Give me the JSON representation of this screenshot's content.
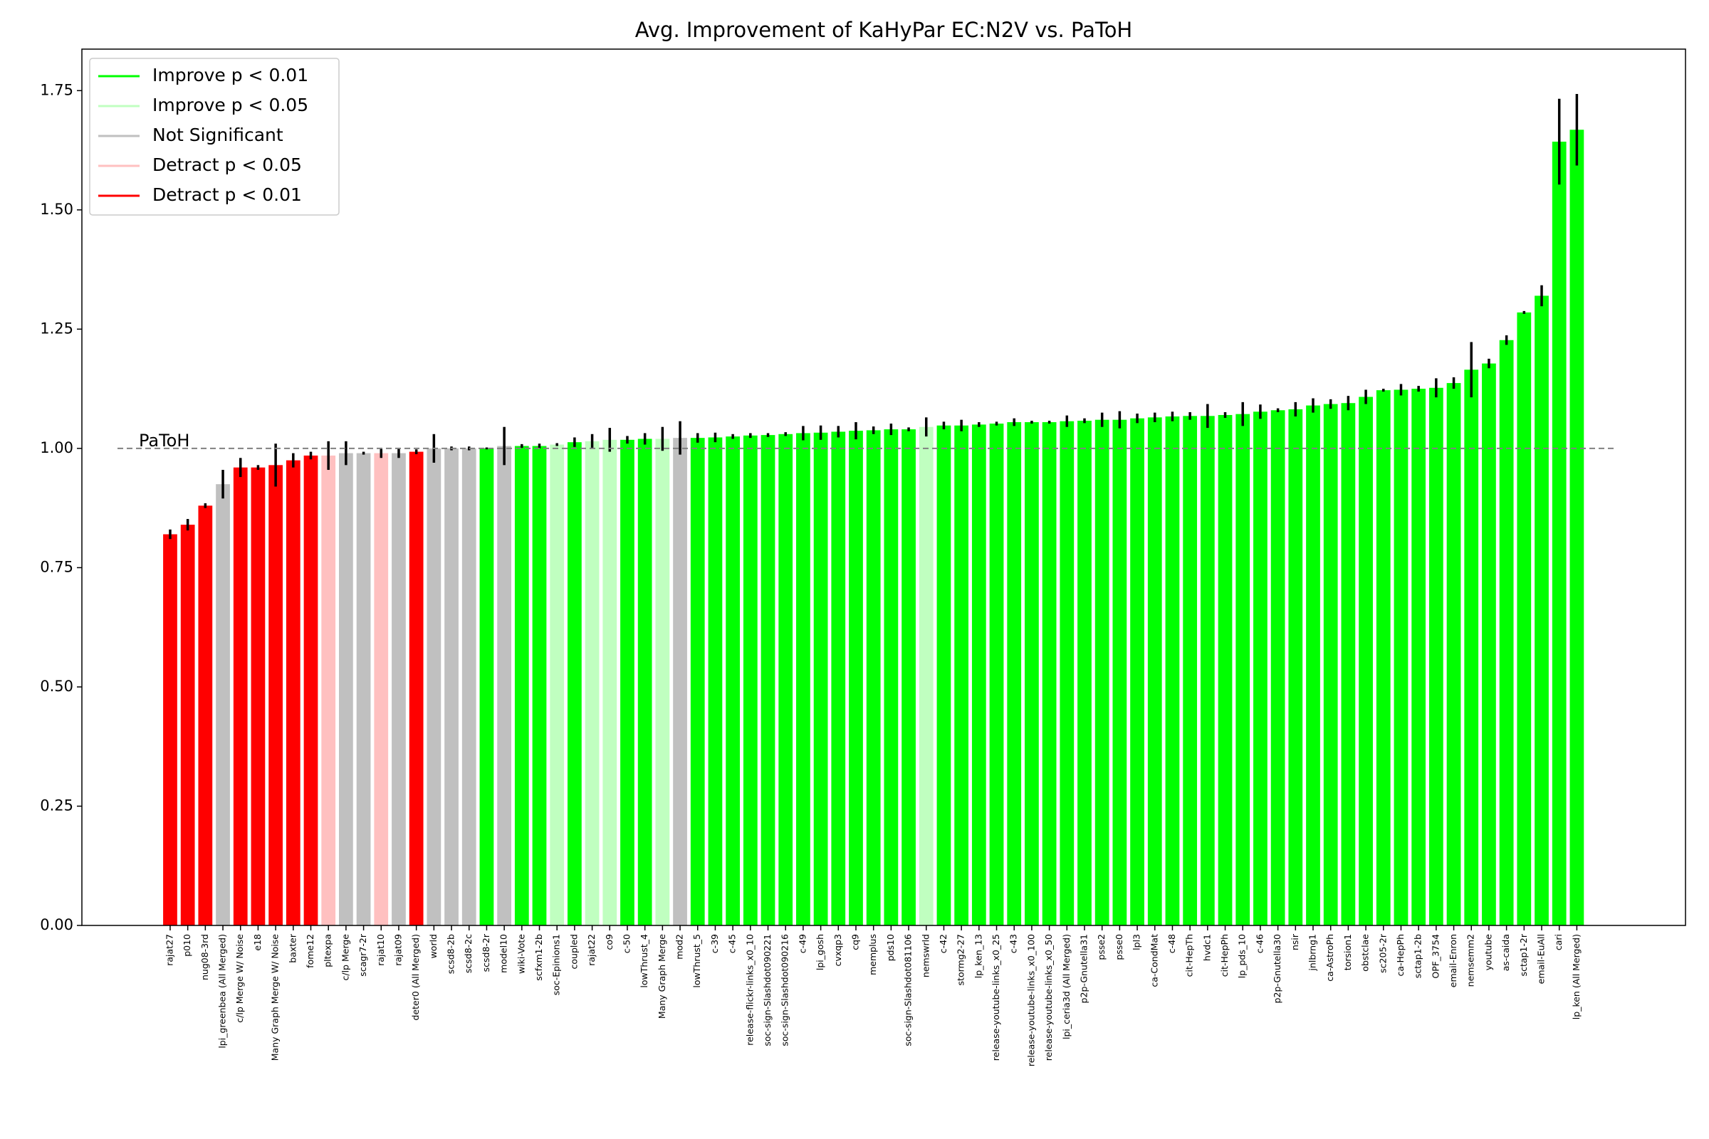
{
  "chart_data": {
    "type": "bar",
    "title": "Avg. Improvement of KaHyPar EC:N2V vs. PaToH",
    "categories": [
      "rajat27",
      "p010",
      "nug08-3rd",
      "lpi_greenbea (All Merged)",
      "c/lp Merge W/ Noise",
      "e18",
      "Many Graph Merge W/ Noise",
      "baxter",
      "fome12",
      "pltexpa",
      "c/lp Merge",
      "scagr7-2r",
      "rajat10",
      "rajat09",
      "deter0 (All Merged)",
      "world",
      "scsd8-2b",
      "scsd8-2c",
      "scsd8-2r",
      "model10",
      "wiki-Vote",
      "scfxm1-2b",
      "soc-Epinions1",
      "coupled",
      "rajat22",
      "co9",
      "c-50",
      "lowThrust_4",
      "Many Graph Merge",
      "mod2",
      "lowThrust_5",
      "c-39",
      "c-45",
      "release-flickr-links_x0_10",
      "soc-sign-Slashdot090221",
      "soc-sign-Slashdot090216",
      "c-49",
      "lpi_gosh",
      "cvxqp3",
      "cq9",
      "memplus",
      "pds10",
      "soc-sign-Slashdot081106",
      "nemswrld",
      "c-42",
      "stormg2-27",
      "lp_ken_13",
      "release-youtube-links_x0_25",
      "c-43",
      "release-youtube-links_x0_100",
      "release-youtube-links_x0_50",
      "lpi_ceria3d (All Merged)",
      "p2p-Gnutella31",
      "psse2",
      "psse0",
      "lpl3",
      "ca-CondMat",
      "c-48",
      "cit-HepTh",
      "hvdc1",
      "cit-HepPh",
      "lp_pds_10",
      "c-46",
      "p2p-Gnutella30",
      "nsir",
      "jnlbrng1",
      "ca-AstroPh",
      "torsion1",
      "obstclae",
      "sc205-2r",
      "ca-HepPh",
      "sctap1-2b",
      "OPF_3754",
      "email-Enron",
      "nemsemm2",
      "youtube",
      "as-caida",
      "sctap1-2r",
      "email-EuAll",
      "cari",
      "lp_ken (All Merged)"
    ],
    "values": [
      0.82,
      0.84,
      0.88,
      0.925,
      0.96,
      0.96,
      0.965,
      0.975,
      0.985,
      0.985,
      0.99,
      0.99,
      0.99,
      0.99,
      0.993,
      1.0,
      1.0,
      1.0,
      1.0,
      1.005,
      1.005,
      1.005,
      1.008,
      1.013,
      1.015,
      1.018,
      1.018,
      1.02,
      1.02,
      1.022,
      1.022,
      1.023,
      1.025,
      1.027,
      1.028,
      1.03,
      1.032,
      1.033,
      1.035,
      1.037,
      1.038,
      1.04,
      1.04,
      1.045,
      1.048,
      1.048,
      1.05,
      1.052,
      1.055,
      1.055,
      1.055,
      1.057,
      1.058,
      1.06,
      1.06,
      1.063,
      1.065,
      1.067,
      1.068,
      1.068,
      1.07,
      1.072,
      1.077,
      1.08,
      1.082,
      1.09,
      1.093,
      1.095,
      1.108,
      1.122,
      1.123,
      1.125,
      1.127,
      1.137,
      1.165,
      1.178,
      1.227,
      1.285,
      1.32,
      1.643,
      1.668
    ],
    "errors": [
      0.01,
      0.012,
      0.005,
      0.03,
      0.02,
      0.005,
      0.045,
      0.015,
      0.008,
      0.03,
      0.025,
      0.003,
      0.01,
      0.01,
      0.005,
      0.03,
      0.004,
      0.004,
      0.002,
      0.04,
      0.004,
      0.005,
      0.003,
      0.01,
      0.015,
      0.025,
      0.008,
      0.012,
      0.025,
      0.035,
      0.01,
      0.01,
      0.005,
      0.005,
      0.004,
      0.004,
      0.015,
      0.015,
      0.012,
      0.018,
      0.008,
      0.012,
      0.004,
      0.02,
      0.008,
      0.012,
      0.005,
      0.004,
      0.008,
      0.003,
      0.003,
      0.012,
      0.005,
      0.015,
      0.018,
      0.01,
      0.01,
      0.01,
      0.008,
      0.025,
      0.006,
      0.025,
      0.015,
      0.004,
      0.015,
      0.015,
      0.01,
      0.015,
      0.015,
      0.003,
      0.012,
      0.006,
      0.02,
      0.012,
      0.058,
      0.01,
      0.01,
      0.003,
      0.022,
      0.09,
      0.075
    ],
    "colors": [
      "#ff0000",
      "#ff0000",
      "#ff0000",
      "#c0c0c0",
      "#ff0000",
      "#ff0000",
      "#ff0000",
      "#ff0000",
      "#ff0000",
      "#ffc0c0",
      "#c0c0c0",
      "#c0c0c0",
      "#ffc0c0",
      "#c0c0c0",
      "#ff0000",
      "#c0c0c0",
      "#c0c0c0",
      "#c0c0c0",
      "#00ff00",
      "#c0c0c0",
      "#00ff00",
      "#00ff00",
      "#c0ffc0",
      "#00ff00",
      "#c0ffc0",
      "#c0ffc0",
      "#00ff00",
      "#00ff00",
      "#c0ffc0",
      "#c0c0c0",
      "#00ff00",
      "#00ff00",
      "#00ff00",
      "#00ff00",
      "#00ff00",
      "#00ff00",
      "#00ff00",
      "#00ff00",
      "#00ff00",
      "#00ff00",
      "#00ff00",
      "#00ff00",
      "#00ff00",
      "#c0ffc0",
      "#00ff00",
      "#00ff00",
      "#00ff00",
      "#00ff00",
      "#00ff00",
      "#00ff00",
      "#00ff00",
      "#00ff00",
      "#00ff00",
      "#00ff00",
      "#00ff00",
      "#00ff00",
      "#00ff00",
      "#00ff00",
      "#00ff00",
      "#00ff00",
      "#00ff00",
      "#00ff00",
      "#00ff00",
      "#00ff00",
      "#00ff00",
      "#00ff00",
      "#00ff00",
      "#00ff00",
      "#00ff00",
      "#00ff00",
      "#00ff00",
      "#00ff00",
      "#00ff00",
      "#00ff00",
      "#00ff00",
      "#00ff00",
      "#00ff00",
      "#00ff00",
      "#00ff00",
      "#00ff00",
      "#00ff00"
    ],
    "legend": [
      {
        "name": "Improve p < 0.01",
        "color": "#00ff00"
      },
      {
        "name": "Improve p < 0.05",
        "color": "#c0ffc0"
      },
      {
        "name": "Not Significant",
        "color": "#c0c0c0"
      },
      {
        "name": "Detract p < 0.05",
        "color": "#ffc0c0"
      },
      {
        "name": "Detract p < 0.01",
        "color": "#ff0000"
      }
    ],
    "legend_position": "upper-left",
    "reference_line": {
      "value": 1,
      "label": "PaToH"
    },
    "ylim": [
      0,
      1.837
    ],
    "yticks": [
      {
        "value": 0,
        "label": "0.00"
      },
      {
        "value": 0.25,
        "label": "0.25"
      },
      {
        "value": 0.5,
        "label": "0.50"
      },
      {
        "value": 0.75,
        "label": "0.75"
      },
      {
        "value": 1,
        "label": "1.00"
      },
      {
        "value": 1.25,
        "label": "1.25"
      },
      {
        "value": 1.5,
        "label": "1.50"
      },
      {
        "value": 1.75,
        "label": "1.75"
      }
    ]
  }
}
